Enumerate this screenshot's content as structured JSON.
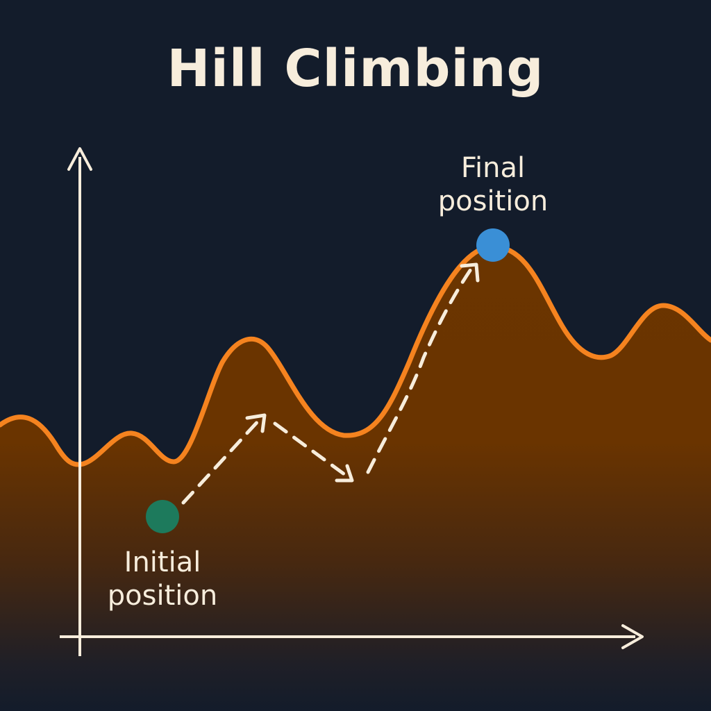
{
  "title": "Hill Climbing",
  "labels": {
    "final_line1": "Final",
    "final_line2": "position",
    "initial_line1": "Initial",
    "initial_line2": "position"
  },
  "colors": {
    "background": "#131c2b",
    "curve": "#f5831f",
    "fill": "#6b3500",
    "axis": "#f7eddc",
    "start_point": "#1d7a5c",
    "end_point": "#3a8fd6",
    "path": "#f7eddc"
  }
}
